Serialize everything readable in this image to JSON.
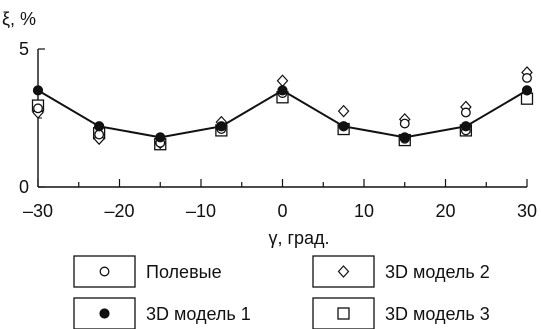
{
  "chart_data": {
    "type": "line",
    "title": "",
    "xlabel": "γ, град.",
    "ylabel": "ξ, %",
    "xlim": [
      -30,
      30
    ],
    "ylim": [
      0,
      5
    ],
    "xticks": [
      -30,
      -20,
      -10,
      0,
      10,
      20,
      30
    ],
    "xticklabels": [
      "–30",
      "–20",
      "–10",
      "0",
      "10",
      "20",
      "30"
    ],
    "yticks": [
      0,
      5
    ],
    "yticklabels": [
      "0",
      "5"
    ],
    "grid": false,
    "legend_position": "bottom",
    "x": [
      -30,
      -22.5,
      -15,
      -7.5,
      0,
      7.5,
      15,
      22.5,
      30
    ],
    "series": [
      {
        "name": "Полевые",
        "marker": "circle-open",
        "points": [
          [
            -30,
            2.85
          ],
          [
            -22.5,
            1.9
          ],
          [
            -15,
            1.6
          ],
          [
            -7.5,
            2.1
          ],
          [
            0,
            3.4
          ],
          [
            7.5,
            2.2
          ],
          [
            15,
            2.3
          ],
          [
            15,
            1.75
          ],
          [
            22.5,
            2.7
          ],
          [
            22.5,
            2.05
          ],
          [
            30,
            3.95
          ],
          [
            30,
            3.5
          ]
        ]
      },
      {
        "name": "3D модель 1",
        "marker": "circle-filled",
        "line": true,
        "points": [
          [
            -30,
            3.5
          ],
          [
            -22.5,
            2.2
          ],
          [
            -15,
            1.8
          ],
          [
            -7.5,
            2.2
          ],
          [
            0,
            3.5
          ],
          [
            7.5,
            2.2
          ],
          [
            15,
            1.8
          ],
          [
            22.5,
            2.2
          ],
          [
            30,
            3.5
          ]
        ]
      },
      {
        "name": "3D модель 2",
        "marker": "diamond-open",
        "points": [
          [
            -30,
            2.7
          ],
          [
            -22.5,
            1.75
          ],
          [
            -15,
            1.6
          ],
          [
            -7.5,
            2.35
          ],
          [
            0,
            3.85
          ],
          [
            7.5,
            2.75
          ],
          [
            15,
            2.45
          ],
          [
            22.5,
            2.9
          ],
          [
            30,
            4.15
          ]
        ]
      },
      {
        "name": "3D модель 3",
        "marker": "square-open",
        "points": [
          [
            -30,
            2.95
          ],
          [
            -22.5,
            1.95
          ],
          [
            -15,
            1.55
          ],
          [
            -7.5,
            2.05
          ],
          [
            0,
            3.25
          ],
          [
            7.5,
            2.1
          ],
          [
            15,
            1.7
          ],
          [
            22.5,
            2.05
          ],
          [
            30,
            3.2
          ]
        ]
      }
    ]
  }
}
